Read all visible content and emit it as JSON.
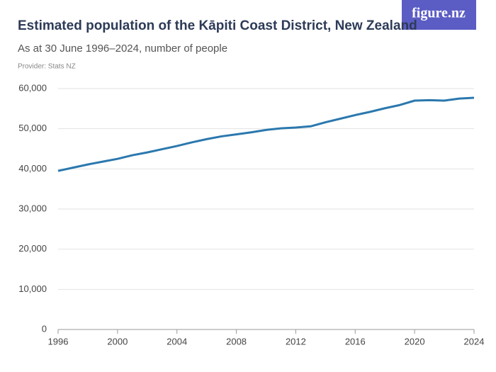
{
  "logo": "figure.nz",
  "chart_data": {
    "type": "line",
    "title": "Estimated population of the Kāpiti Coast District, New Zealand",
    "subtitle": "As at 30 June 1996–2024, number of people",
    "provider": "Provider: Stats NZ",
    "x": [
      1996,
      1997,
      1998,
      1999,
      2000,
      2001,
      2002,
      2003,
      2004,
      2005,
      2006,
      2007,
      2008,
      2009,
      2010,
      2011,
      2012,
      2013,
      2014,
      2015,
      2016,
      2017,
      2018,
      2019,
      2020,
      2021,
      2022,
      2023,
      2024
    ],
    "series": [
      {
        "name": "Population",
        "color": "#2b78ae",
        "values": [
          39500,
          40300,
          41100,
          41800,
          42500,
          43400,
          44100,
          44900,
          45700,
          46600,
          47400,
          48100,
          48600,
          49100,
          49700,
          50100,
          50300,
          50600,
          51600,
          52500,
          53400,
          54200,
          55100,
          55900,
          57000,
          57100,
          57000,
          57500,
          57700
        ]
      }
    ],
    "xlim": [
      1996,
      2024
    ],
    "xticks": [
      1996,
      2000,
      2004,
      2008,
      2012,
      2016,
      2020,
      2024
    ],
    "ylim": [
      0,
      60000
    ],
    "yticks": [
      0,
      {
        "value": 10000,
        "label": "10,000"
      },
      {
        "value": 20000,
        "label": "20,000"
      },
      {
        "value": 30000,
        "label": "30,000"
      },
      {
        "value": 40000,
        "label": "40,000"
      },
      {
        "value": 50000,
        "label": "50,000"
      },
      {
        "value": 60000,
        "label": "60,000"
      }
    ],
    "grid": true
  }
}
